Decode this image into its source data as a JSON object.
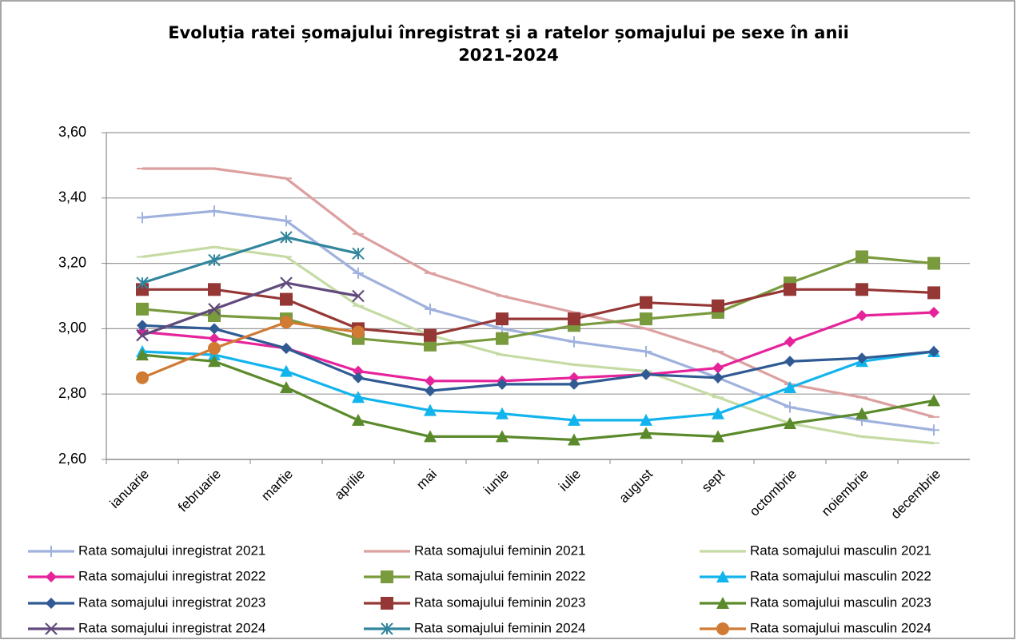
{
  "chart_data": {
    "type": "line",
    "title": [
      "Evoluția ratei șomajului înregistrat și a ratelor șomajului pe sexe în anii",
      "2021-2024"
    ],
    "categories": [
      "ianuarie",
      "februarie",
      "martie",
      "aprilie",
      "mai",
      "iunie",
      "iulie",
      "august",
      "sept",
      "octombrie",
      "noiembrie",
      "decembrie"
    ],
    "ylim": [
      2.6,
      3.6
    ],
    "yticks": [
      {
        "value": 2.6,
        "label": "2,60"
      },
      {
        "value": 2.8,
        "label": "2,80"
      },
      {
        "value": 3.0,
        "label": "3,00"
      },
      {
        "value": 3.2,
        "label": "3,20"
      },
      {
        "value": 3.4,
        "label": "3,40"
      },
      {
        "value": 3.6,
        "label": "3,60"
      }
    ],
    "grid": true,
    "legend": "bottom",
    "series": [
      {
        "name": "Rata somajului inregistrat 2021",
        "color": "#9fb1dd",
        "marker": "plus",
        "values": [
          3.34,
          3.36,
          3.33,
          3.17,
          3.06,
          3.0,
          2.96,
          2.93,
          2.85,
          2.76,
          2.72,
          2.69
        ]
      },
      {
        "name": "Rata somajului feminin 2021",
        "color": "#dca0a0",
        "marker": "dash",
        "values": [
          3.49,
          3.49,
          3.46,
          3.29,
          3.17,
          3.1,
          3.05,
          3.0,
          2.93,
          2.83,
          2.79,
          2.73
        ]
      },
      {
        "name": "Rata somajului masculin 2021",
        "color": "#c6dba4",
        "marker": "dash",
        "values": [
          3.22,
          3.25,
          3.22,
          3.07,
          2.98,
          2.92,
          2.89,
          2.87,
          2.79,
          2.71,
          2.67,
          2.65
        ]
      },
      {
        "name": "Rata somajului inregistrat 2022",
        "color": "#e6239b",
        "marker": "diamond",
        "values": [
          2.99,
          2.97,
          2.94,
          2.87,
          2.84,
          2.84,
          2.85,
          2.86,
          2.88,
          2.96,
          3.04,
          3.05
        ]
      },
      {
        "name": "Rata somajului feminin 2022",
        "color": "#7a9a3e",
        "marker": "square",
        "values": [
          3.06,
          3.04,
          3.03,
          2.97,
          2.95,
          2.97,
          3.01,
          3.03,
          3.05,
          3.14,
          3.22,
          3.2
        ]
      },
      {
        "name": "Rata somajului masculin 2022",
        "color": "#12b4ee",
        "marker": "triangle",
        "values": [
          2.93,
          2.92,
          2.87,
          2.79,
          2.75,
          2.74,
          2.72,
          2.72,
          2.74,
          2.82,
          2.9,
          2.93
        ]
      },
      {
        "name": "Rata somajului inregistrat 2023",
        "color": "#2f5a93",
        "marker": "diamond",
        "values": [
          3.01,
          3.0,
          2.94,
          2.85,
          2.81,
          2.83,
          2.83,
          2.86,
          2.85,
          2.9,
          2.91,
          2.93
        ]
      },
      {
        "name": "Rata somajului feminin 2023",
        "color": "#953735",
        "marker": "square",
        "values": [
          3.12,
          3.12,
          3.09,
          3.0,
          2.98,
          3.03,
          3.03,
          3.08,
          3.07,
          3.12,
          3.12,
          3.11
        ]
      },
      {
        "name": "Rata somajului masculin 2023",
        "color": "#5a8a2b",
        "marker": "triangle",
        "values": [
          2.92,
          2.9,
          2.82,
          2.72,
          2.67,
          2.67,
          2.66,
          2.68,
          2.67,
          2.71,
          2.74,
          2.78
        ]
      },
      {
        "name": "Rata somajului inregistrat 2024",
        "color": "#604a7b",
        "marker": "x",
        "values": [
          2.98,
          3.06,
          3.14,
          3.1,
          null,
          null,
          null,
          null,
          null,
          null,
          null,
          null
        ]
      },
      {
        "name": "Rata somajului feminin 2024",
        "color": "#31859c",
        "marker": "star",
        "values": [
          3.14,
          3.21,
          3.28,
          3.23,
          null,
          null,
          null,
          null,
          null,
          null,
          null,
          null
        ]
      },
      {
        "name": "Rata somajului masculin 2024",
        "color": "#d07a34",
        "marker": "circle",
        "values": [
          2.85,
          2.94,
          3.02,
          2.99,
          null,
          null,
          null,
          null,
          null,
          null,
          null,
          null
        ]
      }
    ]
  }
}
